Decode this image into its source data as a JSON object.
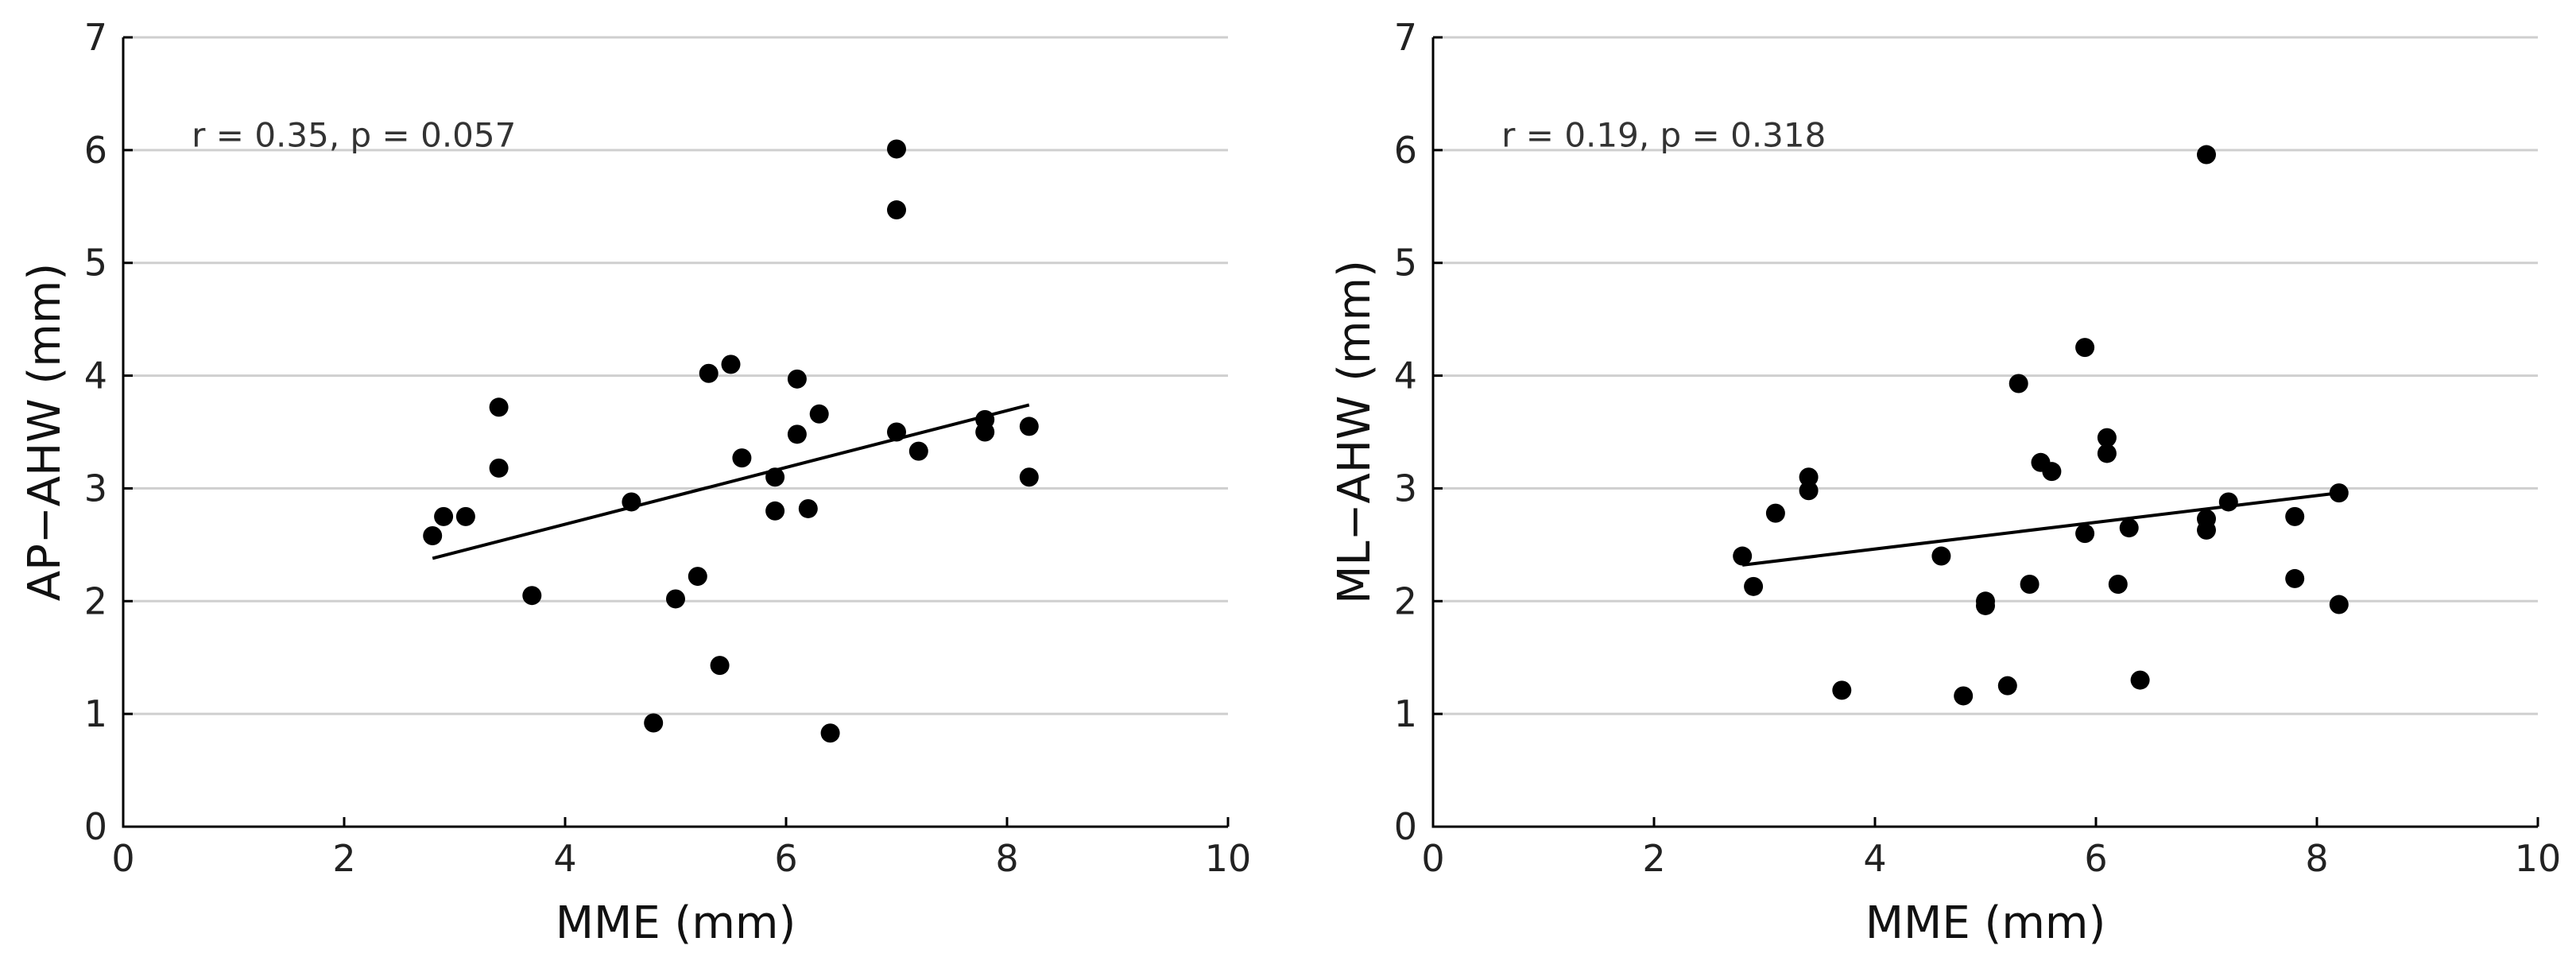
{
  "chart_data": [
    {
      "type": "scatter",
      "title": "",
      "xlabel": "MME (mm)",
      "ylabel": "AP−AHW (mm)",
      "xlim": [
        0,
        10
      ],
      "ylim": [
        0,
        7
      ],
      "xticks": [
        0,
        2,
        4,
        6,
        8,
        10
      ],
      "yticks": [
        0,
        1,
        2,
        3,
        4,
        5,
        6,
        7
      ],
      "grid": "horizontal",
      "annotation": "r = 0.35, p = 0.057",
      "points": [
        {
          "x": 2.8,
          "y": 2.58
        },
        {
          "x": 2.9,
          "y": 2.75
        },
        {
          "x": 3.1,
          "y": 2.75
        },
        {
          "x": 3.4,
          "y": 3.72
        },
        {
          "x": 3.4,
          "y": 3.18
        },
        {
          "x": 3.7,
          "y": 2.05
        },
        {
          "x": 4.6,
          "y": 2.88
        },
        {
          "x": 4.8,
          "y": 0.92
        },
        {
          "x": 5.0,
          "y": 2.02
        },
        {
          "x": 5.2,
          "y": 2.22
        },
        {
          "x": 5.3,
          "y": 4.02
        },
        {
          "x": 5.4,
          "y": 1.43
        },
        {
          "x": 5.5,
          "y": 4.1
        },
        {
          "x": 5.6,
          "y": 3.27
        },
        {
          "x": 5.9,
          "y": 3.1
        },
        {
          "x": 5.9,
          "y": 2.8
        },
        {
          "x": 6.1,
          "y": 3.97
        },
        {
          "x": 6.1,
          "y": 3.48
        },
        {
          "x": 6.2,
          "y": 2.82
        },
        {
          "x": 6.3,
          "y": 3.66
        },
        {
          "x": 6.4,
          "y": 0.83
        },
        {
          "x": 7.0,
          "y": 6.01
        },
        {
          "x": 7.0,
          "y": 5.47
        },
        {
          "x": 7.0,
          "y": 3.5
        },
        {
          "x": 7.2,
          "y": 3.33
        },
        {
          "x": 7.8,
          "y": 3.61
        },
        {
          "x": 7.8,
          "y": 3.5
        },
        {
          "x": 8.2,
          "y": 3.55
        },
        {
          "x": 8.2,
          "y": 3.1
        }
      ],
      "fit_line": {
        "x": [
          2.8,
          8.2
        ],
        "y": [
          2.38,
          3.74
        ]
      }
    },
    {
      "type": "scatter",
      "title": "",
      "xlabel": "MME (mm)",
      "ylabel": "ML−AHW (mm)",
      "xlim": [
        0,
        10
      ],
      "ylim": [
        0,
        7
      ],
      "xticks": [
        0,
        2,
        4,
        6,
        8,
        10
      ],
      "yticks": [
        0,
        1,
        2,
        3,
        4,
        5,
        6,
        7
      ],
      "grid": "horizontal",
      "annotation": "r = 0.19, p = 0.318",
      "points": [
        {
          "x": 2.8,
          "y": 2.4
        },
        {
          "x": 2.9,
          "y": 2.13
        },
        {
          "x": 3.1,
          "y": 2.78
        },
        {
          "x": 3.4,
          "y": 3.1
        },
        {
          "x": 3.4,
          "y": 2.98
        },
        {
          "x": 3.7,
          "y": 1.21
        },
        {
          "x": 4.6,
          "y": 2.4
        },
        {
          "x": 4.8,
          "y": 1.16
        },
        {
          "x": 5.0,
          "y": 2.0
        },
        {
          "x": 5.0,
          "y": 1.96
        },
        {
          "x": 5.2,
          "y": 1.25
        },
        {
          "x": 5.3,
          "y": 3.93
        },
        {
          "x": 5.4,
          "y": 2.15
        },
        {
          "x": 5.5,
          "y": 3.23
        },
        {
          "x": 5.6,
          "y": 3.15
        },
        {
          "x": 5.9,
          "y": 4.25
        },
        {
          "x": 5.9,
          "y": 2.6
        },
        {
          "x": 6.1,
          "y": 3.45
        },
        {
          "x": 6.1,
          "y": 3.31
        },
        {
          "x": 6.2,
          "y": 2.15
        },
        {
          "x": 6.3,
          "y": 2.65
        },
        {
          "x": 6.4,
          "y": 1.3
        },
        {
          "x": 7.0,
          "y": 5.96
        },
        {
          "x": 7.0,
          "y": 2.73
        },
        {
          "x": 7.0,
          "y": 2.63
        },
        {
          "x": 7.2,
          "y": 2.88
        },
        {
          "x": 7.8,
          "y": 2.75
        },
        {
          "x": 7.8,
          "y": 2.2
        },
        {
          "x": 8.2,
          "y": 2.96
        },
        {
          "x": 8.2,
          "y": 1.97
        }
      ],
      "fit_line": {
        "x": [
          2.8,
          8.2
        ],
        "y": [
          2.32,
          2.96
        ]
      }
    }
  ]
}
